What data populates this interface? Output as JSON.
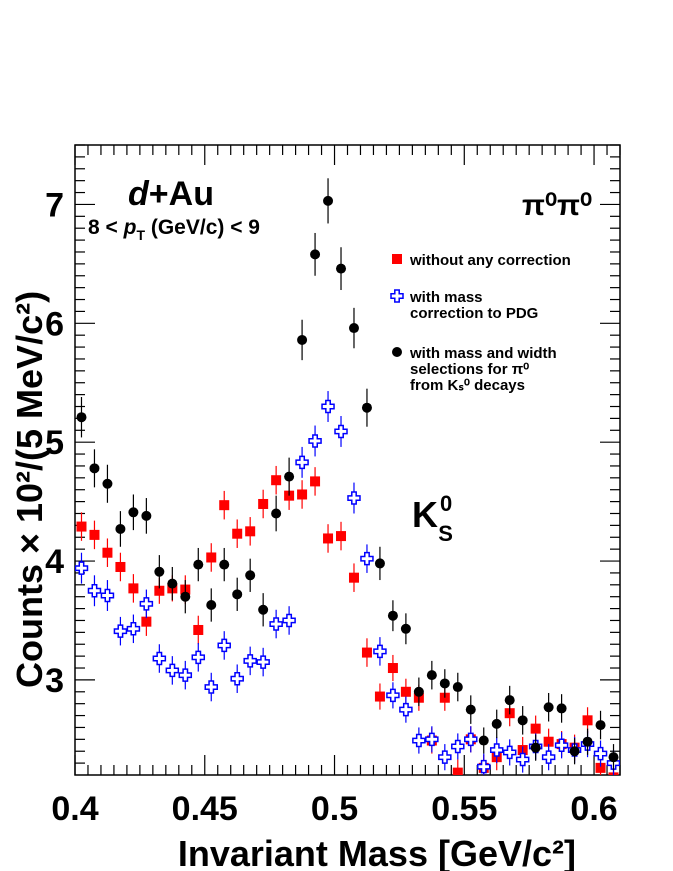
{
  "chart_data": {
    "type": "scatter",
    "title": "",
    "xlabel": "Invariant Mass [GeV/c²]",
    "ylabel": "Counts × 10²/(5 MeV/c²)",
    "xlim": [
      0.4,
      0.61
    ],
    "ylim": [
      2.2,
      7.5
    ],
    "x_ticks": [
      "0.4",
      "0.45",
      "0.5",
      "0.55",
      "0.6"
    ],
    "y_ticks": [
      "3",
      "4",
      "5",
      "6",
      "7"
    ],
    "annotations": {
      "system_d": "d",
      "system_au": "+Au",
      "pt_pre": "8 < ",
      "pt_p": "p",
      "pt_sub": "T",
      "pt_post": " (GeV/c) < 9",
      "channel": "π⁰π⁰",
      "peak_k": "K",
      "peak_sup": "0",
      "peak_sub": "S"
    },
    "legend": {
      "placement": "top-right",
      "entries": [
        {
          "marker": "red-square",
          "lines": [
            "without any correction"
          ]
        },
        {
          "marker": "blue-open-cross",
          "lines": [
            "with mass",
            "correction to PDG"
          ]
        },
        {
          "marker": "black-circle",
          "lines": [
            "with mass and width",
            "selections for π⁰",
            "from Kₛ⁰ decays"
          ]
        }
      ]
    },
    "series": [
      {
        "color": "#ff0000",
        "marker": "square",
        "x": [
          0.4025,
          0.4075,
          0.4125,
          0.4175,
          0.4225,
          0.4275,
          0.4325,
          0.4375,
          0.4425,
          0.4475,
          0.4525,
          0.4575,
          0.4625,
          0.4675,
          0.4725,
          0.4775,
          0.4825,
          0.4875,
          0.4925,
          0.4975,
          0.5025,
          0.5075,
          0.5125,
          0.5175,
          0.5225,
          0.5275,
          0.5325,
          0.5375,
          0.5425,
          0.5475,
          0.5525,
          0.5575,
          0.5625,
          0.5675,
          0.5725,
          0.5775,
          0.5825,
          0.5875,
          0.5925,
          0.5975,
          0.6025,
          0.6075
        ],
        "y": [
          4.29,
          4.22,
          4.07,
          3.95,
          3.77,
          3.49,
          3.75,
          3.77,
          3.76,
          3.42,
          4.03,
          4.47,
          4.23,
          4.25,
          4.48,
          4.68,
          4.55,
          4.56,
          4.67,
          4.19,
          4.21,
          3.86,
          3.23,
          2.86,
          3.1,
          2.9,
          2.85,
          2.49,
          2.85,
          2.22,
          2.5,
          2.26,
          2.35,
          2.72,
          2.41,
          2.59,
          2.48,
          2.46,
          2.43,
          2.66,
          2.26,
          2.18
        ],
        "err": [
          0.12,
          0.12,
          0.12,
          0.12,
          0.12,
          0.12,
          0.11,
          0.11,
          0.12,
          0.12,
          0.12,
          0.12,
          0.12,
          0.12,
          0.12,
          0.12,
          0.12,
          0.12,
          0.12,
          0.12,
          0.12,
          0.12,
          0.12,
          0.11,
          0.11,
          0.11,
          0.11,
          0.11,
          0.11,
          0.11,
          0.11,
          0.11,
          0.11,
          0.11,
          0.11,
          0.11,
          0.11,
          0.11,
          0.11,
          0.11,
          0.11,
          0.11
        ]
      },
      {
        "color": "#0000ff",
        "marker": "open-cross",
        "x": [
          0.4025,
          0.4075,
          0.4125,
          0.4175,
          0.4225,
          0.4275,
          0.4325,
          0.4375,
          0.4425,
          0.4475,
          0.4525,
          0.4575,
          0.4625,
          0.4675,
          0.4725,
          0.4775,
          0.4825,
          0.4875,
          0.4925,
          0.4975,
          0.5025,
          0.5075,
          0.5125,
          0.5175,
          0.5225,
          0.5275,
          0.5325,
          0.5375,
          0.5425,
          0.5475,
          0.5525,
          0.5575,
          0.5625,
          0.5675,
          0.5725,
          0.5775,
          0.5825,
          0.5875,
          0.5925,
          0.5975,
          0.6025,
          0.6075
        ],
        "y": [
          3.94,
          3.75,
          3.71,
          3.41,
          3.43,
          3.64,
          3.18,
          3.08,
          3.04,
          3.19,
          2.94,
          3.29,
          3.01,
          3.16,
          3.15,
          3.47,
          3.5,
          4.83,
          5.01,
          5.3,
          5.09,
          4.53,
          4.02,
          3.24,
          2.87,
          2.75,
          2.49,
          2.5,
          2.35,
          2.44,
          2.5,
          2.27,
          2.41,
          2.39,
          2.33,
          2.44,
          2.35,
          2.45,
          2.41,
          2.46,
          2.38,
          2.3
        ],
        "err": [
          0.13,
          0.13,
          0.13,
          0.12,
          0.12,
          0.12,
          0.12,
          0.12,
          0.12,
          0.12,
          0.12,
          0.12,
          0.12,
          0.12,
          0.12,
          0.12,
          0.12,
          0.13,
          0.13,
          0.13,
          0.13,
          0.13,
          0.12,
          0.12,
          0.11,
          0.11,
          0.11,
          0.11,
          0.11,
          0.11,
          0.11,
          0.11,
          0.11,
          0.11,
          0.11,
          0.11,
          0.11,
          0.11,
          0.11,
          0.11,
          0.11,
          0.11
        ]
      },
      {
        "color": "#000000",
        "marker": "circle",
        "x": [
          0.4025,
          0.4075,
          0.4125,
          0.4175,
          0.4225,
          0.4275,
          0.4325,
          0.4375,
          0.4425,
          0.4475,
          0.4525,
          0.4575,
          0.4625,
          0.4675,
          0.4725,
          0.4775,
          0.4825,
          0.4875,
          0.4925,
          0.4975,
          0.5025,
          0.5075,
          0.5125,
          0.5175,
          0.5225,
          0.5275,
          0.5325,
          0.5375,
          0.5425,
          0.5475,
          0.5525,
          0.5575,
          0.5625,
          0.5675,
          0.5725,
          0.5775,
          0.5825,
          0.5875,
          0.5925,
          0.5975,
          0.6025,
          0.6075
        ],
        "y": [
          5.21,
          4.78,
          4.65,
          4.27,
          4.41,
          4.38,
          3.91,
          3.81,
          3.7,
          3.97,
          3.63,
          3.97,
          3.72,
          3.88,
          3.59,
          4.4,
          4.71,
          5.86,
          6.58,
          7.03,
          6.46,
          5.96,
          5.29,
          3.98,
          3.54,
          3.43,
          2.9,
          3.04,
          2.97,
          2.94,
          2.75,
          2.49,
          2.63,
          2.83,
          2.66,
          2.43,
          2.77,
          2.76,
          2.4,
          2.48,
          2.62,
          2.35
        ],
        "err": [
          0.17,
          0.16,
          0.16,
          0.15,
          0.15,
          0.15,
          0.14,
          0.14,
          0.14,
          0.14,
          0.14,
          0.14,
          0.14,
          0.14,
          0.14,
          0.15,
          0.16,
          0.17,
          0.18,
          0.19,
          0.18,
          0.17,
          0.16,
          0.14,
          0.13,
          0.13,
          0.12,
          0.12,
          0.12,
          0.12,
          0.12,
          0.11,
          0.12,
          0.12,
          0.12,
          0.11,
          0.12,
          0.12,
          0.11,
          0.11,
          0.12,
          0.11
        ]
      }
    ]
  }
}
